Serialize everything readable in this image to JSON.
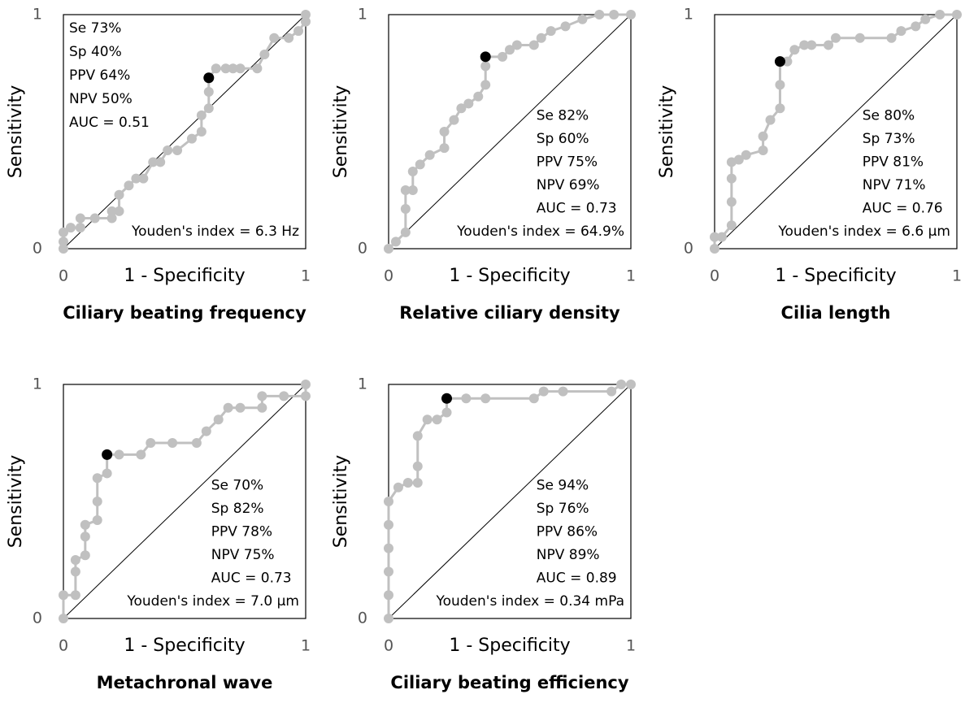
{
  "chart_data": [
    {
      "type": "line",
      "title": "Ciliary beating frequency",
      "xlabel": "1 - Specificity",
      "ylabel": "Sensitivity",
      "xlim": [
        0,
        1
      ],
      "ylim": [
        0,
        1
      ],
      "xticks": [
        0,
        1
      ],
      "yticks": [
        0,
        1
      ],
      "color": "#c0c0c0",
      "cutoff_color": "#000000",
      "stats_position": "upper left",
      "stats": [
        "Se 73%",
        "Sp 40%",
        "PPV 64%",
        "NPV 50%",
        "AUC = 0.51"
      ],
      "youden": "Youden's index = 6.3 Hz",
      "x": [
        0,
        0,
        0,
        0.03,
        0.07,
        0.07,
        0.13,
        0.2,
        0.2,
        0.23,
        0.23,
        0.27,
        0.3,
        0.33,
        0.37,
        0.4,
        0.43,
        0.47,
        0.53,
        0.57,
        0.57,
        0.6,
        0.6,
        0.6,
        0.63,
        0.67,
        0.7,
        0.73,
        0.8,
        0.83,
        0.87,
        0.93,
        0.97,
        1,
        1
      ],
      "values": [
        0,
        0.03,
        0.07,
        0.09,
        0.09,
        0.13,
        0.13,
        0.13,
        0.16,
        0.16,
        0.23,
        0.27,
        0.3,
        0.3,
        0.37,
        0.37,
        0.42,
        0.42,
        0.47,
        0.5,
        0.57,
        0.6,
        0.67,
        0.73,
        0.77,
        0.77,
        0.77,
        0.77,
        0.77,
        0.83,
        0.9,
        0.9,
        0.93,
        0.97,
        1
      ],
      "cutoff": {
        "x": 0.6,
        "y": 0.73
      }
    },
    {
      "type": "line",
      "title": "Relative ciliary density",
      "xlabel": "1 - Specificity",
      "ylabel": "Sensitivity",
      "xlim": [
        0,
        1
      ],
      "ylim": [
        0,
        1
      ],
      "xticks": [
        0,
        1
      ],
      "yticks": [
        0,
        1
      ],
      "color": "#c0c0c0",
      "cutoff_color": "#000000",
      "stats_position": "lower right",
      "stats": [
        "Se 82%",
        "Sp 60%",
        "PPV 75%",
        "NPV 69%",
        "AUC = 0.73"
      ],
      "youden": "Youden's index =  64.9%",
      "x": [
        0,
        0.03,
        0.07,
        0.07,
        0.07,
        0.1,
        0.1,
        0.13,
        0.17,
        0.23,
        0.23,
        0.27,
        0.3,
        0.33,
        0.37,
        0.4,
        0.4,
        0.4,
        0.47,
        0.5,
        0.53,
        0.6,
        0.63,
        0.67,
        0.73,
        0.8,
        0.87,
        0.93,
        1
      ],
      "values": [
        0,
        0.03,
        0.07,
        0.17,
        0.25,
        0.25,
        0.33,
        0.36,
        0.4,
        0.43,
        0.5,
        0.55,
        0.6,
        0.62,
        0.65,
        0.7,
        0.78,
        0.82,
        0.82,
        0.85,
        0.87,
        0.87,
        0.9,
        0.93,
        0.95,
        0.98,
        1,
        1,
        1
      ],
      "cutoff": {
        "x": 0.4,
        "y": 0.82
      }
    },
    {
      "type": "line",
      "title": "Cilia length",
      "xlabel": "1 - Specificity",
      "ylabel": "Sensitivity",
      "xlim": [
        0,
        1
      ],
      "ylim": [
        0,
        1
      ],
      "xticks": [
        0,
        1
      ],
      "yticks": [
        0,
        1
      ],
      "color": "#c0c0c0",
      "cutoff_color": "#000000",
      "stats_position": "lower right",
      "stats": [
        "Se 80%",
        "Sp 73%",
        "PPV 81%",
        "NPV 71%",
        "AUC = 0.76"
      ],
      "youden": "Youden's index =  6.6 µm",
      "x": [
        0,
        0,
        0.03,
        0.07,
        0.07,
        0.07,
        0.07,
        0.1,
        0.13,
        0.2,
        0.2,
        0.23,
        0.27,
        0.27,
        0.27,
        0.3,
        0.33,
        0.37,
        0.4,
        0.47,
        0.5,
        0.6,
        0.73,
        0.77,
        0.83,
        0.87,
        0.93,
        1
      ],
      "values": [
        0,
        0.05,
        0.05,
        0.1,
        0.2,
        0.3,
        0.37,
        0.38,
        0.4,
        0.42,
        0.48,
        0.55,
        0.6,
        0.7,
        0.8,
        0.8,
        0.85,
        0.87,
        0.87,
        0.87,
        0.9,
        0.9,
        0.9,
        0.93,
        0.95,
        0.98,
        1,
        1
      ],
      "cutoff": {
        "x": 0.27,
        "y": 0.8
      }
    },
    {
      "type": "line",
      "title": "Metachronal wave",
      "xlabel": "1 - Specificity",
      "ylabel": "Sensitivity",
      "xlim": [
        0,
        1
      ],
      "ylim": [
        0,
        1
      ],
      "xticks": [
        0,
        1
      ],
      "yticks": [
        0,
        1
      ],
      "color": "#c0c0c0",
      "cutoff_color": "#000000",
      "stats_position": "lower right",
      "stats": [
        "Se 70%",
        "Sp 82%",
        "PPV 78%",
        "NPV 75%",
        "AUC = 0.73"
      ],
      "youden": "Youden's index =  7.0 µm",
      "x": [
        0,
        0,
        0.05,
        0.05,
        0.05,
        0.09,
        0.09,
        0.09,
        0.14,
        0.14,
        0.14,
        0.18,
        0.18,
        0.23,
        0.32,
        0.36,
        0.45,
        0.55,
        0.59,
        0.64,
        0.68,
        0.73,
        0.82,
        0.82,
        0.91,
        1,
        1
      ],
      "values": [
        0,
        0.1,
        0.1,
        0.2,
        0.25,
        0.27,
        0.35,
        0.4,
        0.42,
        0.5,
        0.6,
        0.62,
        0.7,
        0.7,
        0.7,
        0.75,
        0.75,
        0.75,
        0.8,
        0.85,
        0.9,
        0.9,
        0.9,
        0.95,
        0.95,
        0.95,
        1
      ],
      "cutoff": {
        "x": 0.18,
        "y": 0.7
      }
    },
    {
      "type": "line",
      "title": "Ciliary beating efficiency",
      "xlabel": "1 - Specificity",
      "ylabel": "Sensitivity",
      "xlim": [
        0,
        1
      ],
      "ylim": [
        0,
        1
      ],
      "xticks": [
        0,
        1
      ],
      "yticks": [
        0,
        1
      ],
      "color": "#c0c0c0",
      "cutoff_color": "#000000",
      "stats_position": "lower right",
      "stats": [
        "Se  94%",
        "Sp 76%",
        "PPV 86%",
        "NPV 89%",
        "AUC = 0.89"
      ],
      "youden": "Youden's index = 0.34 mPa",
      "x": [
        0,
        0,
        0,
        0,
        0,
        0,
        0.04,
        0.08,
        0.12,
        0.12,
        0.12,
        0.16,
        0.2,
        0.24,
        0.24,
        0.32,
        0.4,
        0.6,
        0.64,
        0.72,
        0.92,
        0.96,
        1
      ],
      "values": [
        0,
        0.1,
        0.2,
        0.3,
        0.4,
        0.5,
        0.56,
        0.58,
        0.58,
        0.65,
        0.78,
        0.85,
        0.85,
        0.88,
        0.94,
        0.94,
        0.94,
        0.94,
        0.97,
        0.97,
        0.97,
        1,
        1
      ],
      "cutoff": {
        "x": 0.24,
        "y": 0.94
      }
    }
  ]
}
